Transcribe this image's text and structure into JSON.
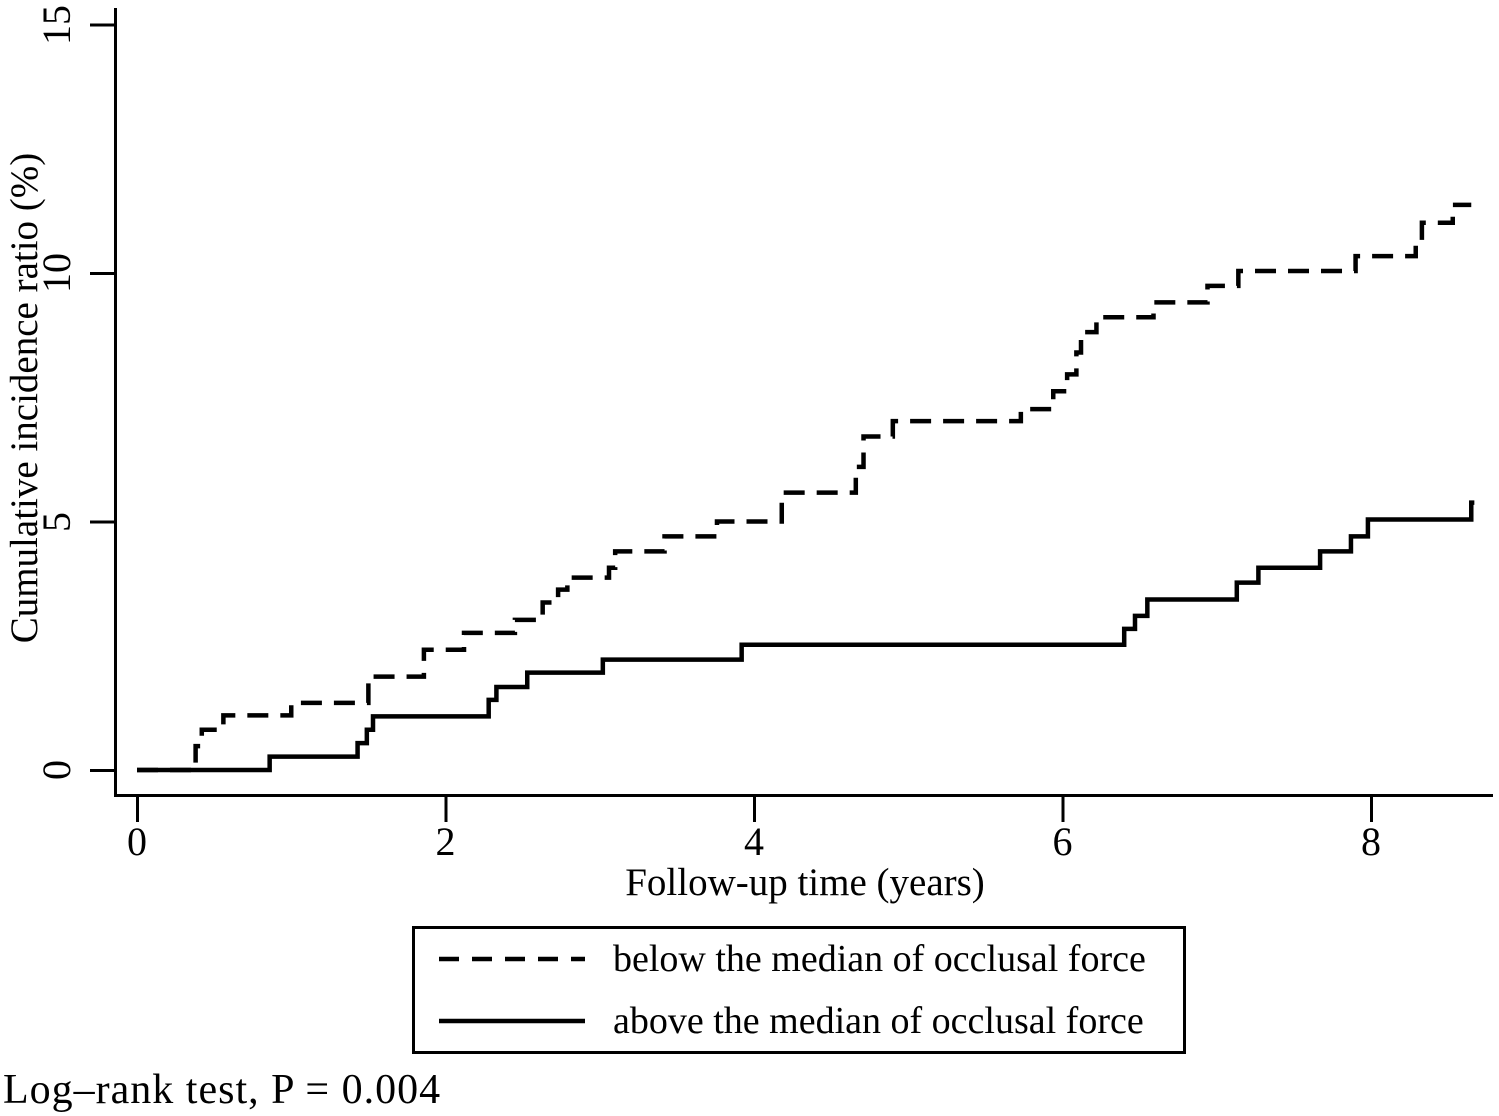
{
  "annotation": {
    "text": "Log–rank test, P = 0.004"
  },
  "chart_data": {
    "type": "line",
    "subtype": "step",
    "title": "",
    "xlabel": "Follow-up time (years)",
    "ylabel": "Cumulative incidence ratio (%)",
    "xlim": [
      0,
      8.9
    ],
    "ylim": [
      0,
      15
    ],
    "xticks": [
      0,
      2,
      4,
      6,
      8
    ],
    "yticks": [
      0,
      5,
      10,
      15
    ],
    "grid": false,
    "legend_position": "below-chart",
    "line_color": "#000000",
    "background_color": "#ffffff",
    "series": [
      {
        "name": "below the median of occlusal force",
        "style": "dashed",
        "end_time": 8.65,
        "points": [
          [
            0,
            0
          ],
          [
            0.38,
            0.48
          ],
          [
            0.42,
            0.81
          ],
          [
            0.56,
            1.1
          ],
          [
            1.0,
            1.35
          ],
          [
            1.5,
            1.88
          ],
          [
            1.86,
            2.42
          ],
          [
            2.12,
            2.76
          ],
          [
            2.45,
            3.02
          ],
          [
            2.63,
            3.37
          ],
          [
            2.73,
            3.63
          ],
          [
            2.79,
            3.87
          ],
          [
            3.06,
            4.07
          ],
          [
            3.1,
            4.4
          ],
          [
            3.42,
            4.7
          ],
          [
            3.76,
            5.0
          ],
          [
            4.18,
            5.58
          ],
          [
            4.66,
            6.1
          ],
          [
            4.71,
            6.71
          ],
          [
            4.9,
            7.02
          ],
          [
            5.73,
            7.26
          ],
          [
            5.94,
            7.62
          ],
          [
            6.03,
            7.96
          ],
          [
            6.09,
            8.4
          ],
          [
            6.12,
            8.81
          ],
          [
            6.22,
            9.11
          ],
          [
            6.59,
            9.41
          ],
          [
            6.94,
            9.74
          ],
          [
            7.14,
            10.04
          ],
          [
            7.9,
            10.34
          ],
          [
            8.29,
            10.66
          ],
          [
            8.33,
            11.01
          ],
          [
            8.53,
            11.37
          ]
        ]
      },
      {
        "name": "above the median of occlusal force",
        "style": "solid",
        "end_time": 8.67,
        "points": [
          [
            0,
            0
          ],
          [
            0.86,
            0.27
          ],
          [
            1.43,
            0.54
          ],
          [
            1.49,
            0.81
          ],
          [
            1.53,
            1.08
          ],
          [
            2.28,
            1.41
          ],
          [
            2.33,
            1.67
          ],
          [
            2.53,
            1.96
          ],
          [
            3.02,
            2.22
          ],
          [
            3.92,
            2.52
          ],
          [
            6.4,
            2.84
          ],
          [
            6.47,
            3.1
          ],
          [
            6.55,
            3.43
          ],
          [
            7.13,
            3.77
          ],
          [
            7.27,
            4.07
          ],
          [
            7.67,
            4.4
          ],
          [
            7.87,
            4.7
          ],
          [
            7.98,
            5.04
          ],
          [
            8.65,
            5.38
          ]
        ]
      }
    ]
  }
}
